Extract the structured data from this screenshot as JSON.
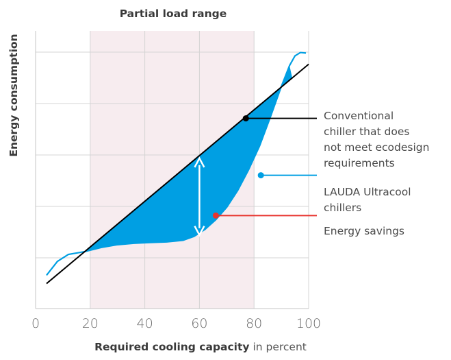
{
  "chart_data": {
    "type": "area",
    "title": "Partial load range",
    "xlabel_bold": "Required cooling capacity",
    "xlabel_rest": " in percent",
    "ylabel": "Energy consumption",
    "xlim": [
      0,
      100
    ],
    "ylim": [
      0,
      100
    ],
    "x_ticks": [
      "0",
      "20",
      "40",
      "60",
      "80",
      "100"
    ],
    "highlight_range": [
      20,
      80
    ],
    "grid": true,
    "series": [
      {
        "name": "Conventional chiller that does not meet ecodesign requirements",
        "color": "#000000",
        "x": [
          4,
          100
        ],
        "y": [
          9,
          88
        ]
      },
      {
        "name": "LAUDA Ultracool chillers",
        "color": "#009fe3",
        "x": [
          4,
          8,
          12,
          18,
          24,
          30,
          36,
          42,
          48,
          54,
          58,
          62,
          66,
          70,
          74,
          78,
          82,
          86,
          90,
          93,
          95,
          97,
          99
        ],
        "y": [
          12,
          17,
          19.5,
          20.5,
          22,
          23,
          23.5,
          23.8,
          24,
          24.6,
          26,
          28.5,
          32,
          36.5,
          42.5,
          50,
          58.5,
          69,
          80,
          87.5,
          91,
          92.2,
          92
        ]
      }
    ],
    "annotations": [
      {
        "lines": [
          "Conventional",
          "chiller that does",
          "not meet ecodesign",
          "requirements"
        ],
        "color": "#000000",
        "anchor": [
          77,
          68.5
        ]
      },
      {
        "lines": [
          "LAUDA Ultracool",
          "chillers"
        ],
        "color": "#009fe3",
        "anchor": [
          82.5,
          48
        ]
      },
      {
        "lines": [
          "Energy savings"
        ],
        "color": "#e8352f",
        "anchor": [
          66,
          33.5
        ]
      }
    ],
    "arrow_x": 60
  }
}
